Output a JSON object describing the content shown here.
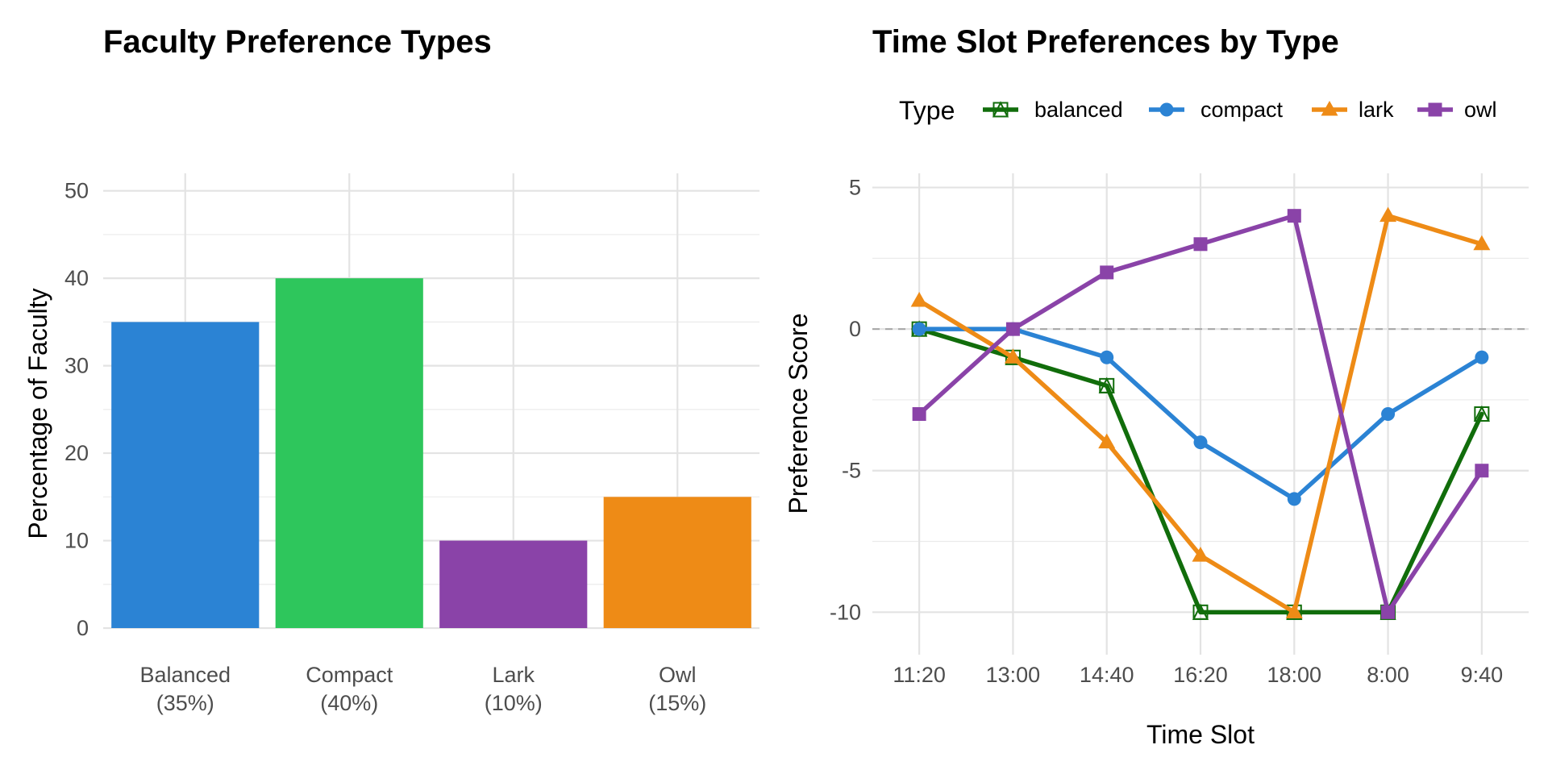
{
  "chart_data": [
    {
      "type": "bar",
      "title": "Faculty Preference Types",
      "xlabel": "",
      "ylabel": "Percentage of Faculty",
      "ylim": [
        0,
        52
      ],
      "yticks": [
        "0",
        "10",
        "20",
        "30",
        "40",
        "50"
      ],
      "grid": true,
      "categories": [
        {
          "line1": "Balanced",
          "line2": "(35%)"
        },
        {
          "line1": "Compact",
          "line2": "(40%)"
        },
        {
          "line1": "Lark",
          "line2": "(10%)"
        },
        {
          "line1": "Owl",
          "line2": "(15%)"
        }
      ],
      "values": [
        35,
        40,
        10,
        15
      ],
      "colors": [
        "#2b83d4",
        "#2ec65c",
        "#8a43a8",
        "#ee8b16"
      ]
    },
    {
      "type": "line",
      "title": "Time Slot Preferences by Type",
      "xlabel": "Time Slot",
      "ylabel": "Preference Score",
      "ylim": [
        -11.5,
        5.5
      ],
      "yticks": [
        "5",
        "0",
        "-5",
        "-10"
      ],
      "reference_line_y": 0,
      "grid": true,
      "legend_title": "Type",
      "legend_position": "top",
      "categories": [
        "11:20",
        "13:00",
        "14:40",
        "16:20",
        "18:00",
        "8:00",
        "9:40"
      ],
      "series": [
        {
          "name": "balanced",
          "color": "#116d0b",
          "marker": "open-square-triangle",
          "values": [
            0,
            -1,
            -2,
            -10,
            -10,
            -10,
            -3
          ]
        },
        {
          "name": "compact",
          "color": "#2b83d4",
          "marker": "circle",
          "values": [
            0,
            0,
            -1,
            -4,
            -6,
            -3,
            -1
          ]
        },
        {
          "name": "lark",
          "color": "#ee8b16",
          "marker": "triangle",
          "values": [
            1,
            -1,
            -4,
            -8,
            -10,
            4,
            3
          ]
        },
        {
          "name": "owl",
          "color": "#8a43a8",
          "marker": "square",
          "values": [
            -3,
            0,
            2,
            3,
            4,
            -10,
            -5
          ]
        }
      ]
    }
  ]
}
